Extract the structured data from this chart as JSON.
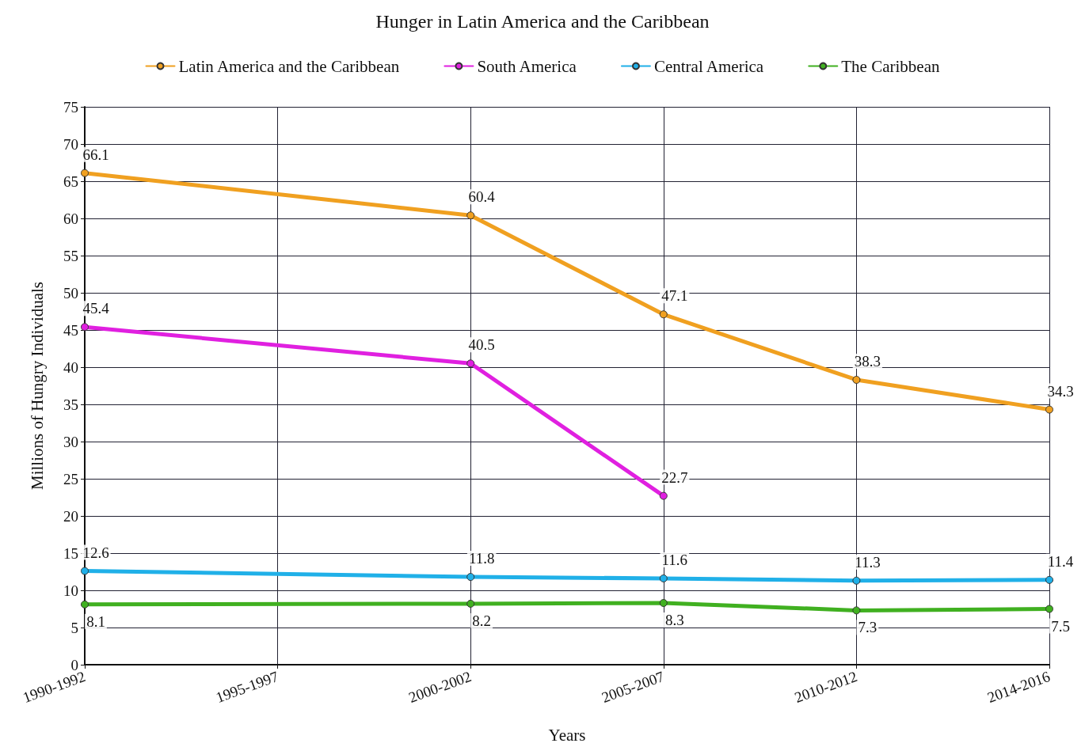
{
  "chart_data": {
    "type": "line",
    "title": "Hunger in Latin America and the Caribbean",
    "xlabel": "Years",
    "ylabel": "Millions of Hungry Individuals",
    "categories": [
      "1990-1992",
      "1995-1997",
      "2000-2002",
      "2005-2007",
      "2010-2012",
      "2014-2016"
    ],
    "series": [
      {
        "name": "Latin America and the Caribbean",
        "color": "#f0a020",
        "values": [
          66.1,
          null,
          60.4,
          47.1,
          38.3,
          34.3
        ]
      },
      {
        "name": "South America",
        "color": "#e020e0",
        "values": [
          45.4,
          null,
          40.5,
          22.7,
          null,
          null
        ]
      },
      {
        "name": "Central America",
        "color": "#20b0e8",
        "values": [
          12.6,
          null,
          11.8,
          11.6,
          11.3,
          11.4
        ]
      },
      {
        "name": "The Caribbean",
        "color": "#40b020",
        "values": [
          8.1,
          null,
          8.2,
          8.3,
          7.3,
          7.5
        ]
      }
    ],
    "ylim": [
      0,
      75
    ],
    "yticks": [
      0,
      5,
      10,
      15,
      20,
      25,
      30,
      35,
      40,
      45,
      50,
      55,
      60,
      65,
      70,
      75
    ],
    "grid": true,
    "legend": "top",
    "marker": "circle",
    "line_style": "solid",
    "data_labels": true
  }
}
